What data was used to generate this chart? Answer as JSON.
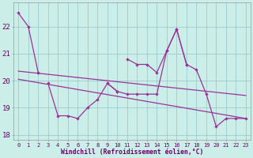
{
  "bg_color": "#cceee8",
  "line_color": "#993399",
  "grid_color": "#99cccc",
  "xlabel": "Windchill (Refroidissement éolien,°C)",
  "x_all": [
    0,
    1,
    2,
    3,
    4,
    5,
    6,
    7,
    8,
    9,
    10,
    11,
    12,
    13,
    14,
    15,
    16,
    17,
    18,
    19,
    20,
    21,
    22,
    23
  ],
  "line_top": [
    22.5,
    22.0,
    20.3,
    null,
    null,
    null,
    null,
    null,
    null,
    null,
    null,
    20.8,
    20.6,
    20.6,
    20.3,
    21.1,
    21.9,
    20.6,
    null,
    null,
    null,
    null,
    null,
    null
  ],
  "line_mid": [
    null,
    null,
    20.3,
    null,
    null,
    null,
    null,
    null,
    null,
    19.9,
    19.6,
    19.5,
    19.5,
    19.5,
    19.5,
    21.1,
    21.9,
    20.6,
    20.4,
    19.5,
    18.3,
    18.6,
    18.6,
    18.6
  ],
  "line_bot": [
    null,
    null,
    null,
    19.9,
    18.7,
    18.7,
    18.6,
    19.0,
    19.3,
    19.9,
    19.6,
    null,
    null,
    null,
    null,
    null,
    null,
    null,
    null,
    null,
    null,
    null,
    null,
    null
  ],
  "trend1": {
    "x": [
      0,
      23
    ],
    "y": [
      20.35,
      19.45
    ]
  },
  "trend2": {
    "x": [
      0,
      23
    ],
    "y": [
      20.05,
      18.6
    ]
  },
  "ylim": [
    17.8,
    22.9
  ],
  "yticks": [
    18,
    19,
    20,
    21,
    22
  ],
  "xticks": [
    0,
    1,
    2,
    3,
    4,
    5,
    6,
    7,
    8,
    9,
    10,
    11,
    12,
    13,
    14,
    15,
    16,
    17,
    18,
    19,
    20,
    21,
    22,
    23
  ],
  "marker": "D",
  "markersize": 2.2,
  "linewidth": 0.9
}
